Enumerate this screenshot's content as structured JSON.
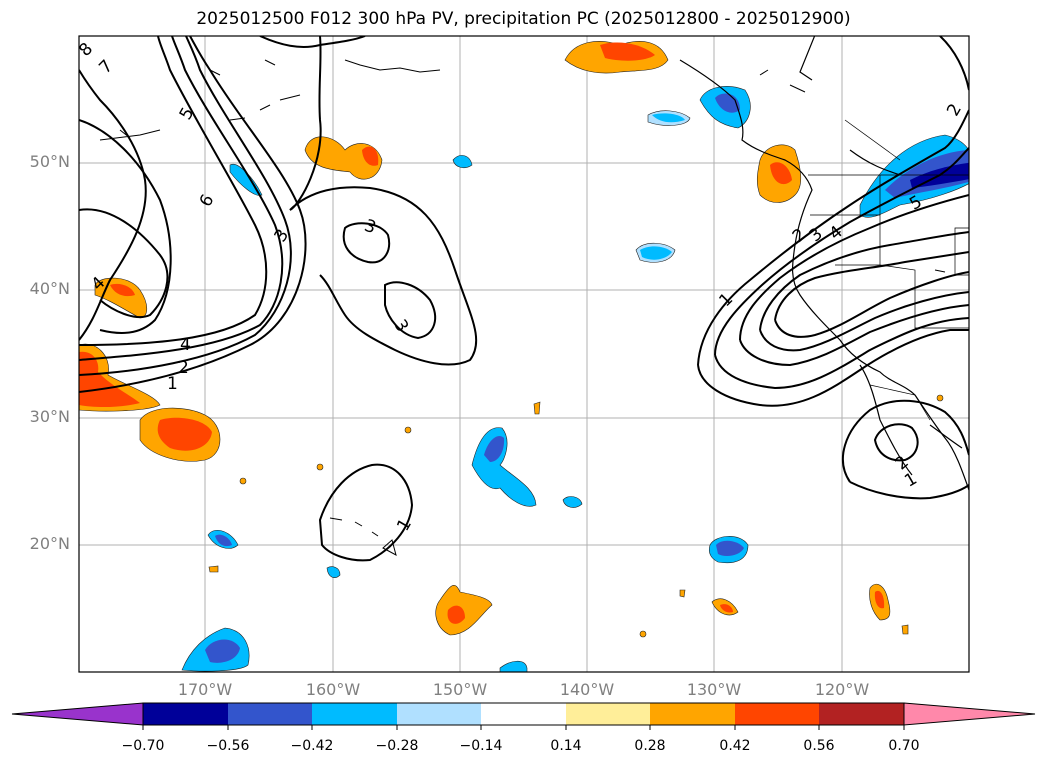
{
  "title": "2025012500 F012 300 hPa PV, precipitation PC (2025012800 - 2025012900)",
  "map": {
    "lat_labels": [
      "50°N",
      "40°N",
      "30°N",
      "20°N"
    ],
    "lon_labels": [
      "170°W",
      "160°W",
      "150°W",
      "140°W",
      "130°W",
      "120°W"
    ],
    "contour_labels": [
      "8",
      "7",
      "5",
      "6",
      "3",
      "4",
      "2",
      "1",
      "4",
      "3",
      "3",
      "2",
      "3",
      "4",
      "5",
      "1",
      "2",
      "1",
      "1",
      "2"
    ]
  },
  "colorbar": {
    "ticks": [
      "−0.70",
      "−0.56",
      "−0.42",
      "−0.28",
      "−0.14",
      "0.14",
      "0.28",
      "0.42",
      "0.56",
      "0.70"
    ],
    "colors": [
      "#9933cc",
      "#000099",
      "#3355cc",
      "#00bbff",
      "#b0e0ff",
      "#ffffff",
      "#ffee99",
      "#ffa500",
      "#ff4500",
      "#b22222",
      "#ff88aa"
    ]
  }
}
